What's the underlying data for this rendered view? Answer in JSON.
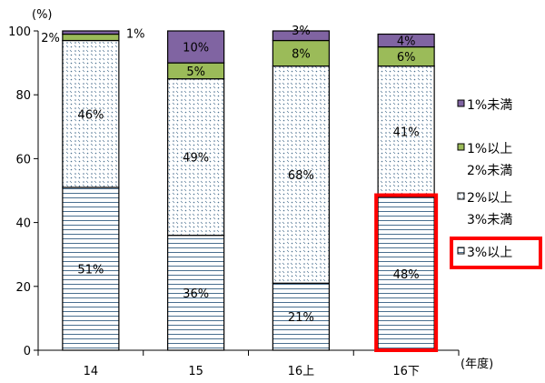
{
  "chart_data": {
    "type": "bar",
    "stacked": true,
    "title": "",
    "ylabel": "(%)",
    "xlabel": "(年度)",
    "ylim": [
      0,
      100
    ],
    "yticks": [
      0,
      20,
      40,
      60,
      80,
      100
    ],
    "categories": [
      "14",
      "15",
      "16上",
      "16下"
    ],
    "series": [
      {
        "name": "3%以上",
        "values": [
          51,
          36,
          21,
          48
        ],
        "labels": [
          "51%",
          "36%",
          "21%",
          "48%"
        ],
        "color": "#ffffff",
        "pattern": "hlines"
      },
      {
        "name": "2%以上 3%未満",
        "values": [
          46,
          49,
          68,
          41
        ],
        "labels": [
          "46%",
          "49%",
          "68%",
          "41%"
        ],
        "color": "#ffffff",
        "pattern": "dots"
      },
      {
        "name": "1%以上 2%未満",
        "values": [
          2,
          5,
          8,
          6
        ],
        "labels": [
          "2%",
          "5%",
          "8%",
          "6%"
        ],
        "color": "#9bbb59"
      },
      {
        "name": "1%未満",
        "values": [
          1,
          10,
          3,
          4
        ],
        "labels": [
          "1%",
          "10%",
          "3%",
          "4%"
        ],
        "color": "#8064a2"
      }
    ],
    "legend": [
      {
        "line1": "1%未満",
        "line2": ""
      },
      {
        "line1": "1%以上",
        "line2": "2%未満"
      },
      {
        "line1": "2%以上",
        "line2": "3%未満"
      },
      {
        "line1": "3%以上",
        "line2": ""
      }
    ],
    "highlight": {
      "category": "16下",
      "series": "3%以上",
      "legend": "3%以上",
      "color": "#ff0000"
    }
  }
}
